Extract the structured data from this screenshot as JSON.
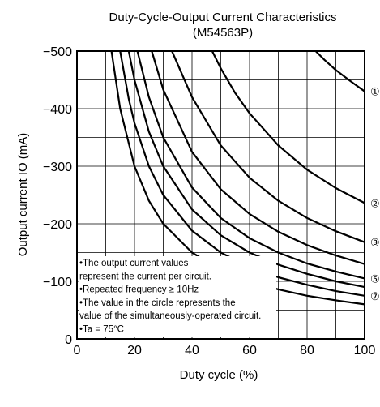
{
  "chart_data": {
    "type": "line",
    "title": "Duty-Cycle-Output Current Characteristics",
    "subtitle": "(M54563P)",
    "xlabel": "Duty cycle  (%)",
    "ylabel": "Output current  IO (mA)",
    "xlim": [
      0,
      100
    ],
    "ylim": [
      0,
      -500
    ],
    "x_ticks": [
      "0",
      "20",
      "40",
      "60",
      "80",
      "100"
    ],
    "y_ticks": [
      "0",
      "−100",
      "−200",
      "−300",
      "−400",
      "−500"
    ],
    "grid": true,
    "y_axis_inverted": true,
    "series": [
      {
        "name": "①",
        "x": [
          83,
          86,
          90,
          95,
          100
        ],
        "y": [
          -500,
          -485,
          -467,
          -448,
          -430
        ]
      },
      {
        "name": "②",
        "x": [
          47,
          50,
          55,
          60,
          70,
          80,
          90,
          100
        ],
        "y": [
          -500,
          -470,
          -427,
          -392,
          -336,
          -294,
          -262,
          -236
        ]
      },
      {
        "name": "③",
        "x": [
          33,
          40,
          50,
          60,
          70,
          80,
          90,
          100
        ],
        "y": [
          -500,
          -420,
          -336,
          -280,
          -240,
          -210,
          -187,
          -168
        ]
      },
      {
        "name": "",
        "x": [
          26,
          30,
          40,
          50,
          60,
          70,
          80,
          90,
          100
        ],
        "y": [
          -500,
          -433,
          -325,
          -260,
          -217,
          -186,
          -163,
          -145,
          -130
        ]
      },
      {
        "name": "⑤",
        "x": [
          21,
          25,
          30,
          40,
          50,
          60,
          70,
          80,
          90,
          100
        ],
        "y": [
          -500,
          -420,
          -350,
          -263,
          -210,
          -175,
          -150,
          -131,
          -117,
          -105
        ]
      },
      {
        "name": "",
        "x": [
          18,
          20,
          25,
          30,
          40,
          50,
          60,
          70,
          80,
          90,
          100
        ],
        "y": [
          -500,
          -450,
          -360,
          -300,
          -225,
          -180,
          -150,
          -129,
          -113,
          -100,
          -90
        ]
      },
      {
        "name": "⑦",
        "x": [
          15,
          18,
          20,
          25,
          30,
          40,
          50,
          60,
          70,
          80,
          90,
          100
        ],
        "y": [
          -500,
          -417,
          -375,
          -300,
          -250,
          -188,
          -150,
          -125,
          -107,
          -94,
          -83,
          -75
        ]
      },
      {
        "name": "",
        "x": [
          12,
          15,
          20,
          25,
          30,
          40,
          50,
          60,
          70,
          80,
          90,
          100
        ],
        "y": [
          -500,
          -400,
          -300,
          -240,
          -200,
          -150,
          -120,
          -100,
          -86,
          -75,
          -67,
          -60
        ]
      }
    ],
    "notes": [
      "•The output current values",
      " represent the current per circuit.",
      "•Repeated frequency ≥ 10Hz",
      "•The value in the circle represents the",
      " value of the simultaneously-operated circuit.",
      "•Ta = 75°C"
    ]
  }
}
